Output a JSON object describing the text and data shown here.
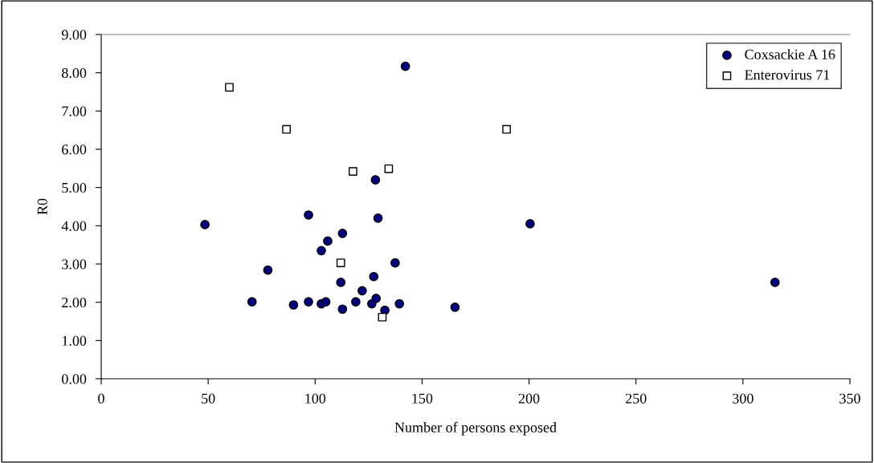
{
  "chart_data": {
    "type": "scatter",
    "xlabel": "Number of persons exposed",
    "ylabel": "R0",
    "xlim": [
      0,
      350
    ],
    "xticks": [
      0,
      50,
      100,
      150,
      200,
      250,
      300,
      350
    ],
    "ylim": [
      0,
      9
    ],
    "yticks": [
      {
        "value": 0,
        "label": "0.00"
      },
      {
        "value": 1,
        "label": "1.00"
      },
      {
        "value": 2,
        "label": "2.00"
      },
      {
        "value": 3,
        "label": "3.00"
      },
      {
        "value": 4,
        "label": "4.00"
      },
      {
        "value": 5,
        "label": "5.00"
      },
      {
        "value": 6,
        "label": "6.00"
      },
      {
        "value": 7,
        "label": "7.00"
      },
      {
        "value": 8,
        "label": "8.00"
      },
      {
        "value": 9,
        "label": "9.00"
      }
    ],
    "grid": false,
    "legend": "top right",
    "series": [
      {
        "name": "Coxsackie A 16",
        "color": "#000080",
        "marker": "circle",
        "x": [
          48.5,
          96.9,
          129.4,
          112.8,
          105.9,
          102.9,
          77.9,
          137.4,
          112.0,
          127.4,
          122.0,
          70.5,
          89.9,
          96.9,
          102.9,
          105.0,
          112.8,
          119.0,
          126.5,
          128.5,
          132.6,
          139.4,
          165.4,
          142.2,
          128.2,
          200.5,
          315.0
        ],
        "values": [
          4.03,
          4.28,
          4.2,
          3.8,
          3.6,
          3.35,
          2.84,
          3.03,
          2.52,
          2.67,
          2.3,
          2.01,
          1.93,
          2.01,
          1.96,
          2.01,
          1.82,
          2.01,
          1.96,
          2.1,
          1.79,
          1.96,
          1.87,
          8.17,
          5.2,
          4.05,
          2.52
        ]
      },
      {
        "name": "Enterovirus 71",
        "color": "#ffffff",
        "marker": "square",
        "x": [
          59.9,
          86.6,
          117.7,
          134.4,
          189.5,
          112.0,
          131.4
        ],
        "values": [
          7.62,
          6.52,
          5.42,
          5.49,
          6.52,
          3.03,
          1.61
        ]
      }
    ]
  }
}
